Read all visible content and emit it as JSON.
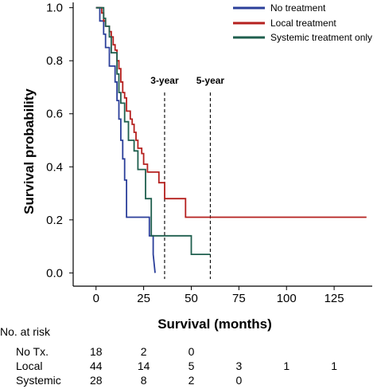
{
  "chart_data": {
    "type": "line",
    "subtype": "kaplan-meier",
    "xlabel": "Survival (months)",
    "ylabel": "Survival probability",
    "xlim": [
      -12,
      145
    ],
    "ylim": [
      -0.05,
      1.02
    ],
    "x_ticks": [
      0,
      25,
      50,
      75,
      100,
      125
    ],
    "y_ticks": [
      "0.0",
      "0.2",
      "0.4",
      "0.6",
      "0.8",
      "1.0"
    ],
    "y_tick_values": [
      0.0,
      0.2,
      0.4,
      0.6,
      0.8,
      1.0
    ],
    "grid": false,
    "legend_position": "top-right",
    "reference_lines": [
      {
        "label": "3-year",
        "x": 36
      },
      {
        "label": "5-year",
        "x": 60
      }
    ],
    "series": [
      {
        "name": "No treatment",
        "color": "#2b3f9a",
        "x": [
          0,
          2,
          2,
          4,
          4,
          5,
          5,
          7,
          7,
          10,
          10,
          11,
          11,
          12,
          12,
          13,
          13,
          14,
          14,
          15,
          15,
          16,
          16,
          28,
          28,
          30,
          30,
          31
        ],
        "y": [
          1.0,
          1.0,
          0.95,
          0.95,
          0.9,
          0.9,
          0.85,
          0.85,
          0.78,
          0.78,
          0.72,
          0.72,
          0.65,
          0.65,
          0.58,
          0.58,
          0.5,
          0.5,
          0.43,
          0.43,
          0.35,
          0.35,
          0.21,
          0.21,
          0.14,
          0.14,
          0.07,
          0.0
        ]
      },
      {
        "name": "Local treatment",
        "color": "#b5201e",
        "x": [
          0,
          3,
          3,
          4,
          4,
          5,
          5,
          7,
          7,
          8,
          8,
          9,
          9,
          10,
          10,
          11,
          11,
          12,
          12,
          13,
          13,
          14,
          14,
          15,
          15,
          16,
          16,
          18,
          18,
          19,
          19,
          20,
          20,
          21,
          21,
          22,
          22,
          24,
          24,
          25,
          25,
          27,
          27,
          33,
          33,
          36,
          36,
          47,
          47,
          67,
          67,
          142
        ],
        "y": [
          1.0,
          1.0,
          0.98,
          0.98,
          0.95,
          0.95,
          0.93,
          0.93,
          0.91,
          0.91,
          0.89,
          0.89,
          0.86,
          0.86,
          0.84,
          0.84,
          0.8,
          0.8,
          0.77,
          0.77,
          0.72,
          0.72,
          0.68,
          0.68,
          0.66,
          0.66,
          0.61,
          0.61,
          0.58,
          0.58,
          0.56,
          0.56,
          0.53,
          0.53,
          0.5,
          0.5,
          0.47,
          0.47,
          0.45,
          0.45,
          0.41,
          0.41,
          0.38,
          0.38,
          0.34,
          0.34,
          0.28,
          0.28,
          0.21,
          0.21,
          0.21,
          0.21
        ]
      },
      {
        "name": "Systemic treatment only",
        "color": "#1f5f4e",
        "x": [
          0,
          4,
          4,
          5,
          5,
          7,
          7,
          8,
          8,
          11,
          11,
          12,
          12,
          13,
          13,
          15,
          15,
          17,
          17,
          20,
          20,
          22,
          22,
          26,
          26,
          29,
          29,
          50,
          50,
          60
        ],
        "y": [
          1.0,
          1.0,
          0.96,
          0.96,
          0.93,
          0.93,
          0.89,
          0.89,
          0.83,
          0.83,
          0.75,
          0.75,
          0.68,
          0.68,
          0.64,
          0.64,
          0.57,
          0.57,
          0.5,
          0.5,
          0.46,
          0.46,
          0.39,
          0.39,
          0.28,
          0.28,
          0.14,
          0.14,
          0.07,
          0.07
        ]
      }
    ],
    "risk_table": {
      "title": "No. at risk",
      "time_points": [
        0,
        25,
        50,
        75,
        100,
        125
      ],
      "rows": [
        {
          "label": "No Tx.",
          "counts": [
            "18",
            "2",
            "0",
            "",
            "",
            ""
          ]
        },
        {
          "label": "Local",
          "counts": [
            "44",
            "14",
            "5",
            "3",
            "1",
            "1"
          ]
        },
        {
          "label": "Systemic",
          "counts": [
            "28",
            "8",
            "2",
            "0",
            "",
            ""
          ]
        }
      ]
    }
  }
}
